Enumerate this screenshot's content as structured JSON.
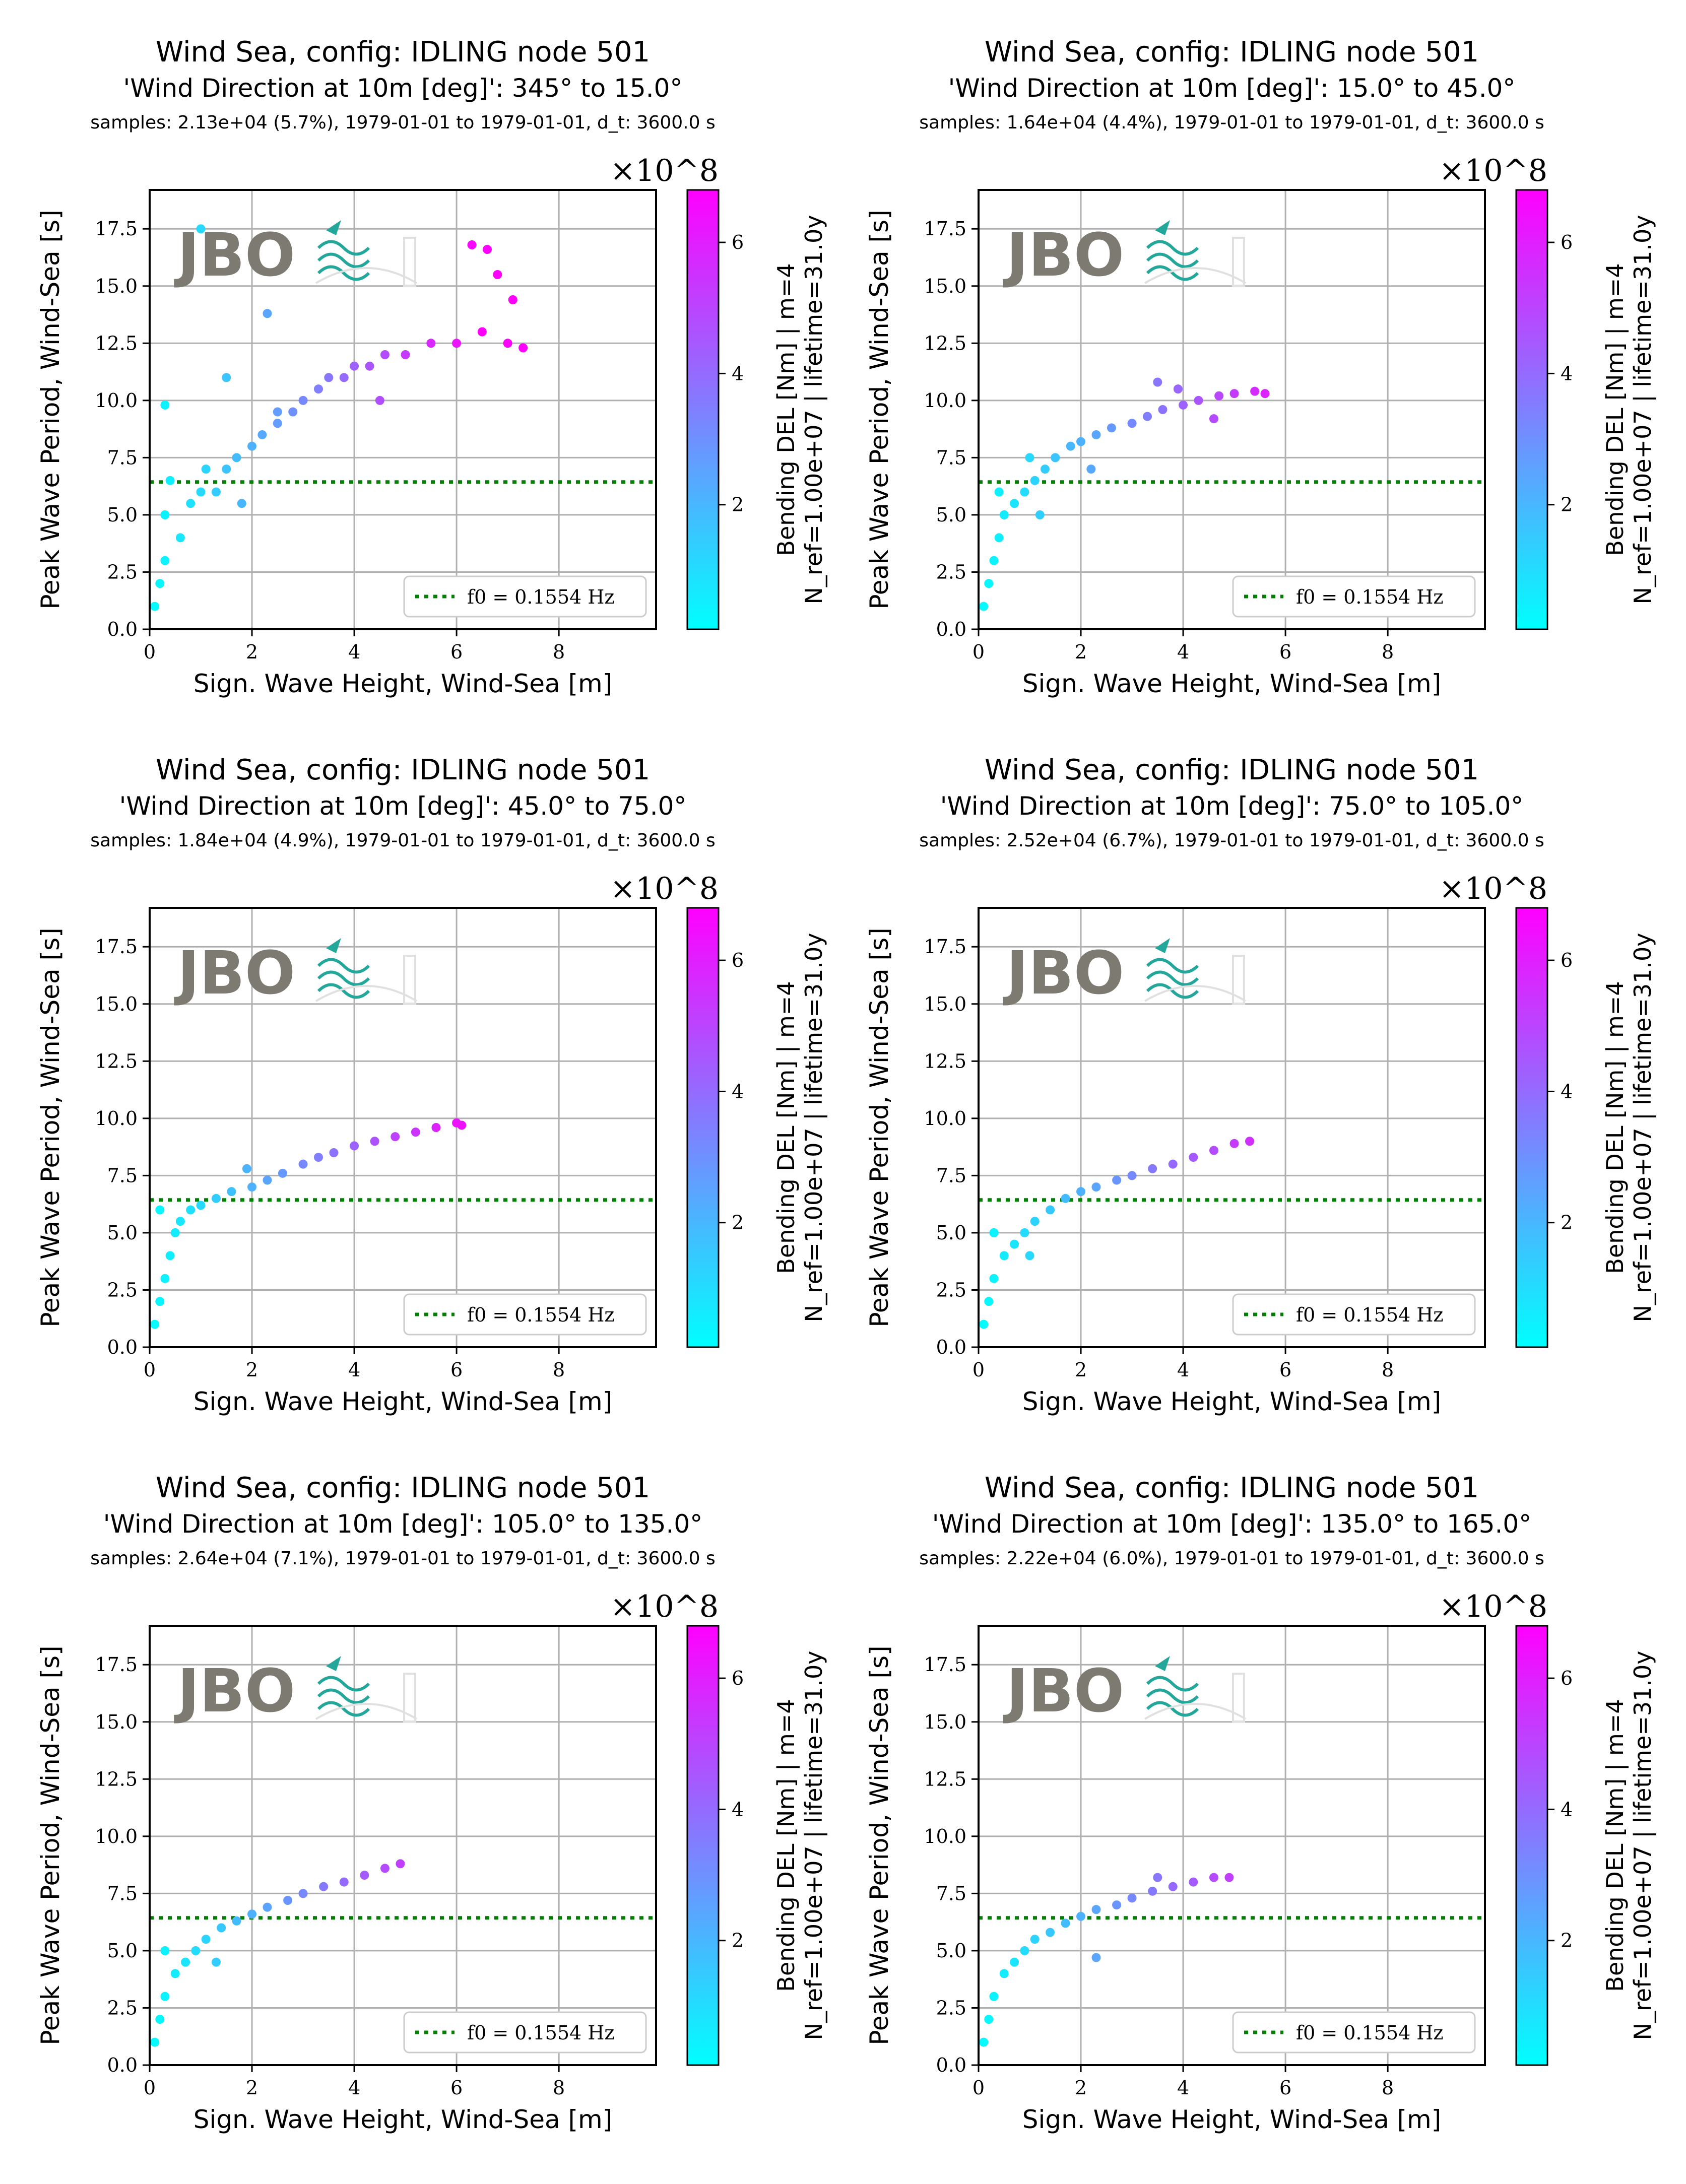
{
  "chart_data": [
    {
      "type": "scatter",
      "title": "Wind Sea, config: IDLING node 501",
      "subtitle": "'Wind Direction at 10m [deg]': 345° to 15.0°",
      "info": "samples: 2.13e+04 (5.7%), 1979-01-01 to 1979-01-01, d_t: 3600.0 s",
      "xlabel": "Sign. Wave Height, Wind-Sea [m]",
      "ylabel": "Peak Wave Period, Wind-Sea [s]",
      "xlim": [
        0,
        9.9
      ],
      "ylim": [
        0,
        19.2
      ],
      "xticks": [
        "0",
        "2",
        "4",
        "6",
        "8"
      ],
      "yticks": [
        "0.0",
        "2.5",
        "5.0",
        "7.5",
        "10.0",
        "12.5",
        "15.0",
        "17.5"
      ],
      "hline": {
        "y": 6.435,
        "color": "#008000",
        "label": "f0 = 0.1554 Hz",
        "style": "dotted"
      },
      "colorbar": {
        "label1": "Bending DEL [Nm] | m=4",
        "label2": "N_ref=1.00e+07 | lifetime=31.0y",
        "scale": "×10^8",
        "ticks": [
          "2",
          "4",
          "6"
        ],
        "range": [
          0.1,
          6.8
        ],
        "colors": [
          "#00ffff",
          "#ff00ff"
        ]
      },
      "points": [
        [
          0.1,
          1
        ],
        [
          0.2,
          2
        ],
        [
          0.3,
          3
        ],
        [
          0.3,
          5
        ],
        [
          0.4,
          6.5
        ],
        [
          0.6,
          4
        ],
        [
          0.8,
          5.5
        ],
        [
          1,
          6
        ],
        [
          1.1,
          7
        ],
        [
          1.3,
          6
        ],
        [
          1.5,
          7
        ],
        [
          1.7,
          7.5
        ],
        [
          2,
          8
        ],
        [
          2.2,
          8.5
        ],
        [
          2.5,
          9
        ],
        [
          2.8,
          9.5
        ],
        [
          3,
          10
        ],
        [
          3.3,
          10.5
        ],
        [
          3.5,
          11
        ],
        [
          3.8,
          11
        ],
        [
          4,
          11.5
        ],
        [
          4.3,
          11.5
        ],
        [
          4.6,
          12
        ],
        [
          5,
          12
        ],
        [
          5.5,
          12.5
        ],
        [
          6,
          12.5
        ],
        [
          6.5,
          13
        ],
        [
          7,
          12.5
        ],
        [
          7.3,
          12.3
        ],
        [
          0.3,
          9.8
        ],
        [
          1,
          17.5
        ],
        [
          1.5,
          11
        ],
        [
          2.3,
          13.8
        ],
        [
          6.3,
          16.8
        ],
        [
          6.6,
          16.6
        ],
        [
          6.8,
          15.5
        ],
        [
          7.1,
          14.4
        ],
        [
          1.8,
          5.5
        ],
        [
          2.5,
          9.5
        ],
        [
          4.5,
          10
        ]
      ]
    },
    {
      "type": "scatter",
      "title": "Wind Sea, config: IDLING node 501",
      "subtitle": "'Wind Direction at 10m [deg]': 15.0° to 45.0°",
      "info": "samples: 1.64e+04 (4.4%), 1979-01-01 to 1979-01-01, d_t: 3600.0 s",
      "xlabel": "Sign. Wave Height, Wind-Sea [m]",
      "ylabel": "Peak Wave Period, Wind-Sea [s]",
      "xlim": [
        0,
        9.9
      ],
      "ylim": [
        0,
        19.2
      ],
      "xticks": [
        "0",
        "2",
        "4",
        "6",
        "8"
      ],
      "yticks": [
        "0.0",
        "2.5",
        "5.0",
        "7.5",
        "10.0",
        "12.5",
        "15.0",
        "17.5"
      ],
      "hline": {
        "y": 6.435,
        "color": "#008000",
        "label": "f0 = 0.1554 Hz",
        "style": "dotted"
      },
      "colorbar": {
        "label1": "Bending DEL [Nm] | m=4",
        "label2": "N_ref=1.00e+07 | lifetime=31.0y",
        "scale": "×10^8",
        "ticks": [
          "2",
          "4",
          "6"
        ],
        "range": [
          0.1,
          6.8
        ],
        "colors": [
          "#00ffff",
          "#ff00ff"
        ]
      },
      "points": [
        [
          0.1,
          1
        ],
        [
          0.2,
          2
        ],
        [
          0.3,
          3
        ],
        [
          0.4,
          4
        ],
        [
          0.5,
          5
        ],
        [
          0.7,
          5.5
        ],
        [
          0.9,
          6
        ],
        [
          1.1,
          6.5
        ],
        [
          1.3,
          7
        ],
        [
          1.5,
          7.5
        ],
        [
          1.8,
          8
        ],
        [
          2,
          8.2
        ],
        [
          2.3,
          8.5
        ],
        [
          2.6,
          8.8
        ],
        [
          3,
          9
        ],
        [
          3.3,
          9.3
        ],
        [
          3.6,
          9.6
        ],
        [
          4,
          9.8
        ],
        [
          4.3,
          10
        ],
        [
          4.7,
          10.2
        ],
        [
          5,
          10.3
        ],
        [
          5.4,
          10.4
        ],
        [
          5.6,
          10.3
        ],
        [
          1,
          7.5
        ],
        [
          0.4,
          6
        ],
        [
          3.5,
          10.8
        ],
        [
          3.9,
          10.5
        ],
        [
          4.6,
          9.2
        ],
        [
          1.2,
          5
        ],
        [
          2.2,
          7
        ]
      ]
    },
    {
      "type": "scatter",
      "title": "Wind Sea, config: IDLING node 501",
      "subtitle": "'Wind Direction at 10m [deg]': 45.0° to 75.0°",
      "info": "samples: 1.84e+04 (4.9%), 1979-01-01 to 1979-01-01, d_t: 3600.0 s",
      "xlabel": "Sign. Wave Height, Wind-Sea [m]",
      "ylabel": "Peak Wave Period, Wind-Sea [s]",
      "xlim": [
        0,
        9.9
      ],
      "ylim": [
        0,
        19.2
      ],
      "xticks": [
        "0",
        "2",
        "4",
        "6",
        "8"
      ],
      "yticks": [
        "0.0",
        "2.5",
        "5.0",
        "7.5",
        "10.0",
        "12.5",
        "15.0",
        "17.5"
      ],
      "hline": {
        "y": 6.435,
        "color": "#008000",
        "label": "f0 = 0.1554 Hz",
        "style": "dotted"
      },
      "colorbar": {
        "label1": "Bending DEL [Nm] | m=4",
        "label2": "N_ref=1.00e+07 | lifetime=31.0y",
        "scale": "×10^8",
        "ticks": [
          "2",
          "4",
          "6"
        ],
        "range": [
          0.1,
          6.8
        ],
        "colors": [
          "#00ffff",
          "#ff00ff"
        ]
      },
      "points": [
        [
          0.1,
          1
        ],
        [
          0.2,
          2
        ],
        [
          0.3,
          3
        ],
        [
          0.4,
          4
        ],
        [
          0.5,
          5
        ],
        [
          0.6,
          5.5
        ],
        [
          0.8,
          6
        ],
        [
          1,
          6.2
        ],
        [
          1.3,
          6.5
        ],
        [
          1.6,
          6.8
        ],
        [
          2,
          7
        ],
        [
          2.3,
          7.3
        ],
        [
          2.6,
          7.6
        ],
        [
          3,
          8
        ],
        [
          3.3,
          8.3
        ],
        [
          3.6,
          8.5
        ],
        [
          4,
          8.8
        ],
        [
          4.4,
          9
        ],
        [
          4.8,
          9.2
        ],
        [
          5.2,
          9.4
        ],
        [
          5.6,
          9.6
        ],
        [
          6,
          9.8
        ],
        [
          6.1,
          9.7
        ],
        [
          0.2,
          6
        ],
        [
          1.9,
          7.8
        ]
      ]
    },
    {
      "type": "scatter",
      "title": "Wind Sea, config: IDLING node 501",
      "subtitle": "'Wind Direction at 10m [deg]': 75.0° to 105.0°",
      "info": "samples: 2.52e+04 (6.7%), 1979-01-01 to 1979-01-01, d_t: 3600.0 s",
      "xlabel": "Sign. Wave Height, Wind-Sea [m]",
      "ylabel": "Peak Wave Period, Wind-Sea [s]",
      "xlim": [
        0,
        9.9
      ],
      "ylim": [
        0,
        19.2
      ],
      "xticks": [
        "0",
        "2",
        "4",
        "6",
        "8"
      ],
      "yticks": [
        "0.0",
        "2.5",
        "5.0",
        "7.5",
        "10.0",
        "12.5",
        "15.0",
        "17.5"
      ],
      "hline": {
        "y": 6.435,
        "color": "#008000",
        "label": "f0 = 0.1554 Hz",
        "style": "dotted"
      },
      "colorbar": {
        "label1": "Bending DEL [Nm] | m=4",
        "label2": "N_ref=1.00e+07 | lifetime=31.0y",
        "scale": "×10^8",
        "ticks": [
          "2",
          "4",
          "6"
        ],
        "range": [
          0.1,
          6.8
        ],
        "colors": [
          "#00ffff",
          "#ff00ff"
        ]
      },
      "points": [
        [
          0.1,
          1
        ],
        [
          0.2,
          2
        ],
        [
          0.3,
          3
        ],
        [
          0.5,
          4
        ],
        [
          0.7,
          4.5
        ],
        [
          0.9,
          5
        ],
        [
          1.1,
          5.5
        ],
        [
          1.4,
          6
        ],
        [
          1.7,
          6.5
        ],
        [
          2,
          6.8
        ],
        [
          2.3,
          7
        ],
        [
          2.7,
          7.3
        ],
        [
          3,
          7.5
        ],
        [
          3.4,
          7.8
        ],
        [
          3.8,
          8
        ],
        [
          4.2,
          8.3
        ],
        [
          4.6,
          8.6
        ],
        [
          5,
          8.9
        ],
        [
          5.3,
          9
        ],
        [
          0.3,
          5
        ],
        [
          1,
          4
        ]
      ]
    },
    {
      "type": "scatter",
      "title": "Wind Sea, config: IDLING node 501",
      "subtitle": "'Wind Direction at 10m [deg]': 105.0° to 135.0°",
      "info": "samples: 2.64e+04 (7.1%), 1979-01-01 to 1979-01-01, d_t: 3600.0 s",
      "xlabel": "Sign. Wave Height, Wind-Sea [m]",
      "ylabel": "Peak Wave Period, Wind-Sea [s]",
      "xlim": [
        0,
        9.9
      ],
      "ylim": [
        0,
        19.2
      ],
      "xticks": [
        "0",
        "2",
        "4",
        "6",
        "8"
      ],
      "yticks": [
        "0.0",
        "2.5",
        "5.0",
        "7.5",
        "10.0",
        "12.5",
        "15.0",
        "17.5"
      ],
      "hline": {
        "y": 6.435,
        "color": "#008000",
        "label": "f0 = 0.1554 Hz",
        "style": "dotted"
      },
      "colorbar": {
        "label1": "Bending DEL [Nm] | m=4",
        "label2": "N_ref=1.00e+07 | lifetime=31.0y",
        "scale": "×10^8",
        "ticks": [
          "2",
          "4",
          "6"
        ],
        "range": [
          0.1,
          6.8
        ],
        "colors": [
          "#00ffff",
          "#ff00ff"
        ]
      },
      "points": [
        [
          0.1,
          1
        ],
        [
          0.2,
          2
        ],
        [
          0.3,
          3
        ],
        [
          0.5,
          4
        ],
        [
          0.7,
          4.5
        ],
        [
          0.9,
          5
        ],
        [
          1.1,
          5.5
        ],
        [
          1.4,
          6
        ],
        [
          1.7,
          6.3
        ],
        [
          2,
          6.6
        ],
        [
          2.3,
          6.9
        ],
        [
          2.7,
          7.2
        ],
        [
          3,
          7.5
        ],
        [
          3.4,
          7.8
        ],
        [
          3.8,
          8
        ],
        [
          4.2,
          8.3
        ],
        [
          4.6,
          8.6
        ],
        [
          4.9,
          8.8
        ],
        [
          0.3,
          5
        ],
        [
          1.3,
          4.5
        ]
      ]
    },
    {
      "type": "scatter",
      "title": "Wind Sea, config: IDLING node 501",
      "subtitle": "'Wind Direction at 10m [deg]': 135.0° to 165.0°",
      "info": "samples: 2.22e+04 (6.0%), 1979-01-01 to 1979-01-01, d_t: 3600.0 s",
      "xlabel": "Sign. Wave Height, Wind-Sea [m]",
      "ylabel": "Peak Wave Period, Wind-Sea [s]",
      "xlim": [
        0,
        9.9
      ],
      "ylim": [
        0,
        19.2
      ],
      "xticks": [
        "0",
        "2",
        "4",
        "6",
        "8"
      ],
      "yticks": [
        "0.0",
        "2.5",
        "5.0",
        "7.5",
        "10.0",
        "12.5",
        "15.0",
        "17.5"
      ],
      "hline": {
        "y": 6.435,
        "color": "#008000",
        "label": "f0 = 0.1554 Hz",
        "style": "dotted"
      },
      "colorbar": {
        "label1": "Bending DEL [Nm] | m=4",
        "label2": "N_ref=1.00e+07 | lifetime=31.0y",
        "scale": "×10^8",
        "ticks": [
          "2",
          "4",
          "6"
        ],
        "range": [
          0.1,
          6.8
        ],
        "colors": [
          "#00ffff",
          "#ff00ff"
        ]
      },
      "points": [
        [
          0.1,
          1
        ],
        [
          0.2,
          2
        ],
        [
          0.3,
          3
        ],
        [
          0.5,
          4
        ],
        [
          0.7,
          4.5
        ],
        [
          0.9,
          5
        ],
        [
          1.1,
          5.5
        ],
        [
          1.4,
          5.8
        ],
        [
          1.7,
          6.2
        ],
        [
          2,
          6.5
        ],
        [
          2.3,
          6.8
        ],
        [
          2.7,
          7
        ],
        [
          3,
          7.3
        ],
        [
          3.4,
          7.6
        ],
        [
          3.8,
          7.8
        ],
        [
          4.2,
          8
        ],
        [
          4.6,
          8.2
        ],
        [
          4.9,
          8.2
        ],
        [
          2.3,
          4.7
        ],
        [
          3.5,
          8.2
        ]
      ]
    }
  ],
  "watermark": {
    "text": "JBO"
  }
}
